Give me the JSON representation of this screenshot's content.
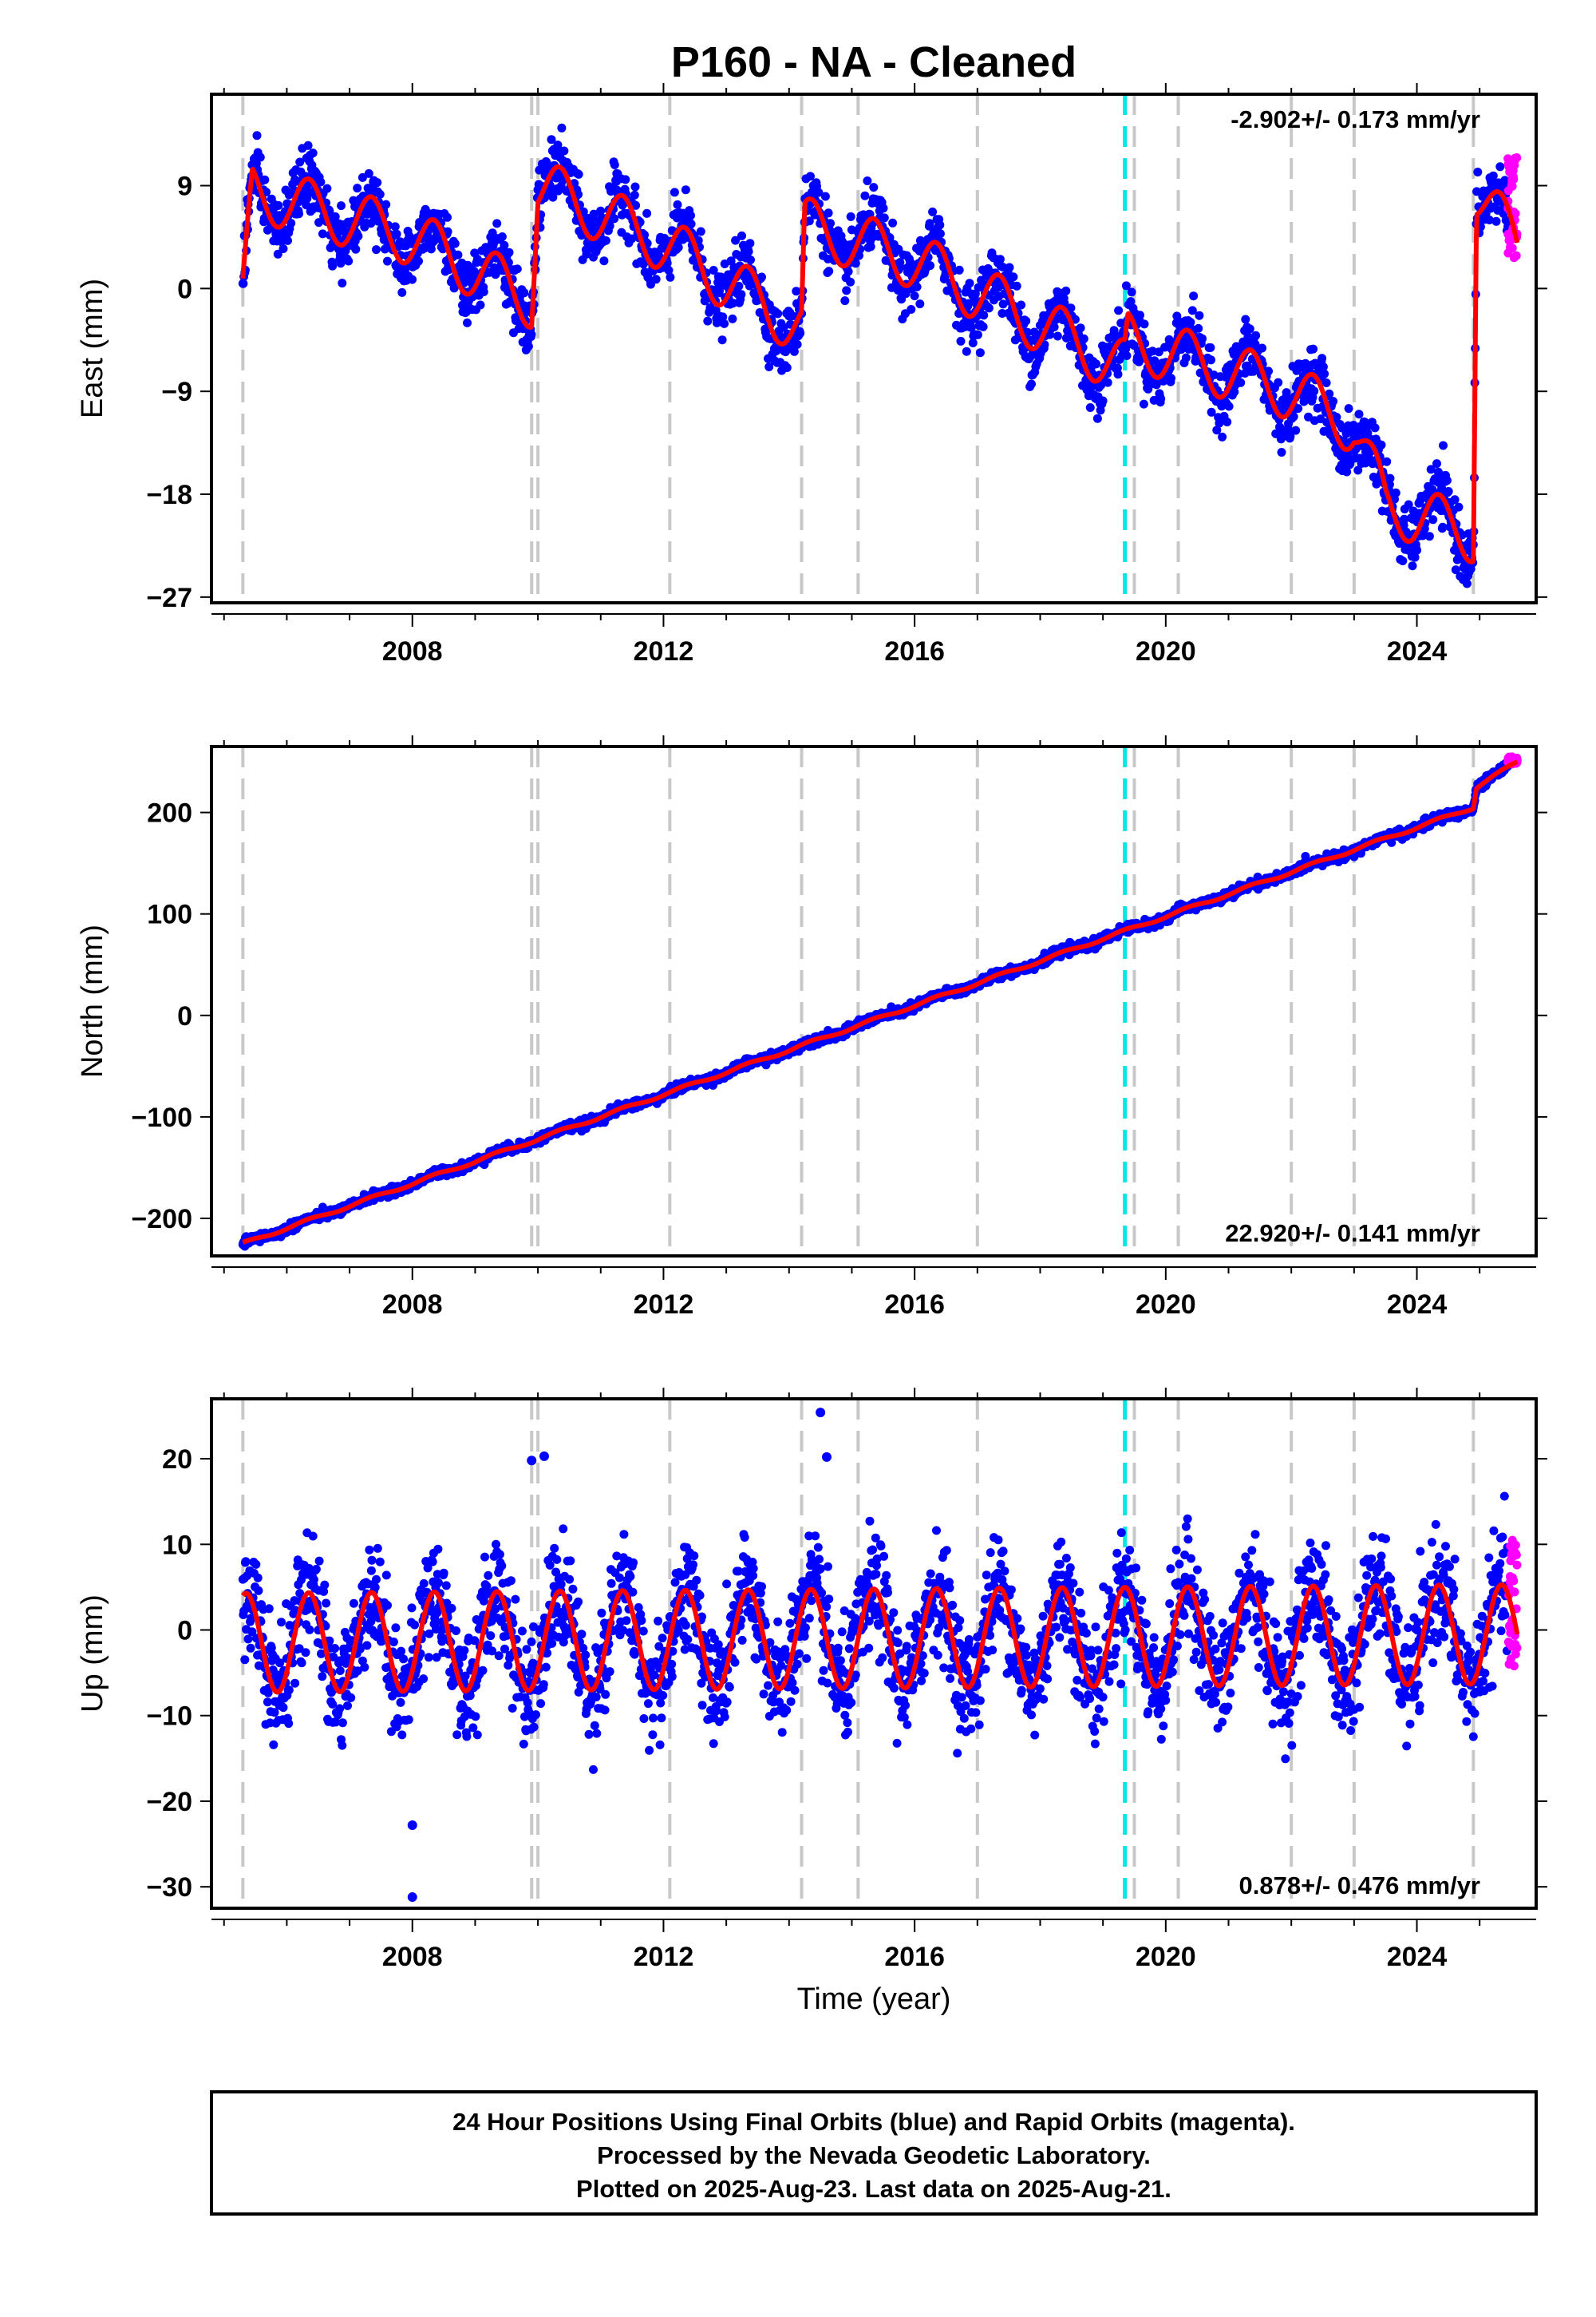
{
  "title": "P160  - NA - Cleaned",
  "xlabel": "Time (year)",
  "footer": {
    "line1": "24 Hour Positions Using Final Orbits (blue) and Rapid Orbits (magenta).",
    "line2": "Processed by the Nevada Geodetic Laboratory.",
    "line3": "Plotted on 2025-Aug-23. Last data on 2025-Aug-21."
  },
  "colors": {
    "final_orbits": "#0000ff",
    "rapid_orbits": "#ff00ff",
    "model_fit": "#ff0000",
    "equipment_change": "#c8c8c8",
    "earthquake": "#00e5e5"
  },
  "chart_data": [
    {
      "type": "scatter",
      "panel": "east",
      "ylabel": "East (mm)",
      "rate_label": "-2.902+/- 0.173 mm/yr",
      "xlim": [
        2004.8,
        2025.9
      ],
      "ylim": [
        -27.5,
        17
      ],
      "x_ticks": [
        2008,
        2012,
        2016,
        2020,
        2024
      ],
      "y_ticks": [
        9,
        0,
        -9,
        -18,
        -27
      ],
      "y_tick_labels": [
        "9",
        "0",
        "−9",
        "−18",
        "−27"
      ],
      "x_minor_ticks": [
        2005,
        2006,
        2007,
        2009,
        2010,
        2011,
        2013,
        2014,
        2015,
        2017,
        2018,
        2019,
        2021,
        2022,
        2023,
        2025
      ],
      "offset_lines_gray": [
        2005.3,
        2009.9,
        2010.0,
        2012.1,
        2014.2,
        2015.1,
        2017.0,
        2019.5,
        2020.2,
        2022.0,
        2023.0,
        2024.9
      ],
      "offset_lines_cyan": [
        2019.35
      ],
      "trend": [
        [
          2005.3,
          -1.5
        ],
        [
          2005.45,
          8.5
        ],
        [
          2008.0,
          4.5
        ],
        [
          2009.9,
          -1.0
        ],
        [
          2010.0,
          9.0
        ],
        [
          2012.0,
          4.0
        ],
        [
          2014.2,
          -3.5
        ],
        [
          2014.25,
          5.5
        ],
        [
          2016.0,
          2.5
        ],
        [
          2019.35,
          -7.0
        ],
        [
          2019.4,
          -4.5
        ],
        [
          2022.0,
          -9.0
        ],
        [
          2023.0,
          -12.0
        ],
        [
          2023.5,
          -19.0
        ],
        [
          2024.9,
          -21.5
        ],
        [
          2024.95,
          8.5
        ],
        [
          2025.6,
          4.0
        ]
      ],
      "annual_amplitude": 2.5,
      "scatter_sd": 1.3,
      "rapid_orbits": {
        "x_range": [
          2025.45,
          2025.6
        ],
        "y_range": [
          2.5,
          11.5
        ]
      }
    },
    {
      "type": "scatter",
      "panel": "north",
      "ylabel": "North (mm)",
      "rate_label": "22.920+/- 0.141 mm/yr",
      "xlim": [
        2004.8,
        2025.9
      ],
      "ylim": [
        -237,
        265
      ],
      "x_ticks": [
        2008,
        2012,
        2016,
        2020,
        2024
      ],
      "y_ticks": [
        200,
        100,
        0,
        -100,
        -200
      ],
      "y_tick_labels": [
        "200",
        "100",
        "0",
        "−100",
        "−200"
      ],
      "x_minor_ticks": [
        2005,
        2006,
        2007,
        2009,
        2010,
        2011,
        2013,
        2014,
        2015,
        2017,
        2018,
        2019,
        2021,
        2022,
        2023,
        2025
      ],
      "offset_lines_gray": [
        2005.3,
        2009.9,
        2010.0,
        2012.1,
        2014.2,
        2015.1,
        2017.0,
        2019.5,
        2020.2,
        2022.0,
        2023.0,
        2024.9
      ],
      "offset_lines_cyan": [
        2019.35
      ],
      "trend": [
        [
          2005.3,
          -225
        ],
        [
          2024.9,
          205
        ],
        [
          2024.95,
          225
        ],
        [
          2025.6,
          250
        ]
      ],
      "annual_amplitude": 1.5,
      "scatter_sd": 2.2,
      "rapid_orbits": {
        "x_range": [
          2025.45,
          2025.6
        ],
        "y_range": [
          247,
          255
        ]
      }
    },
    {
      "type": "scatter",
      "panel": "up",
      "ylabel": "Up (mm)",
      "rate_label": "0.878+/- 0.476 mm/yr",
      "xlim": [
        2004.8,
        2025.9
      ],
      "ylim": [
        -32.5,
        27
      ],
      "x_ticks": [
        2008,
        2012,
        2016,
        2020,
        2024
      ],
      "y_ticks": [
        20,
        10,
        0,
        -10,
        -20,
        -30
      ],
      "y_tick_labels": [
        "20",
        "10",
        "0",
        "−10",
        "−20",
        "−30"
      ],
      "x_minor_ticks": [
        2005,
        2006,
        2007,
        2009,
        2010,
        2011,
        2013,
        2014,
        2015,
        2017,
        2018,
        2019,
        2021,
        2022,
        2023,
        2025
      ],
      "offset_lines_gray": [
        2005.3,
        2009.9,
        2010.0,
        2012.1,
        2014.2,
        2015.1,
        2017.0,
        2019.5,
        2020.2,
        2022.0,
        2023.0,
        2024.9
      ],
      "offset_lines_cyan": [
        2019.35
      ],
      "trend": [
        [
          2005.3,
          -1.5
        ],
        [
          2025.6,
          -0.5
        ]
      ],
      "annual_amplitude": 5.8,
      "scatter_sd": 3.2,
      "outliers": [
        [
          2008.0,
          -22.8
        ],
        [
          2008.0,
          -31.2
        ],
        [
          2009.9,
          19.8
        ],
        [
          2010.1,
          20.3
        ],
        [
          2014.5,
          25.4
        ],
        [
          2014.6,
          20.2
        ]
      ],
      "rapid_orbits": {
        "x_range": [
          2025.45,
          2025.6
        ],
        "y_range": [
          -4.5,
          10.5
        ]
      }
    }
  ]
}
